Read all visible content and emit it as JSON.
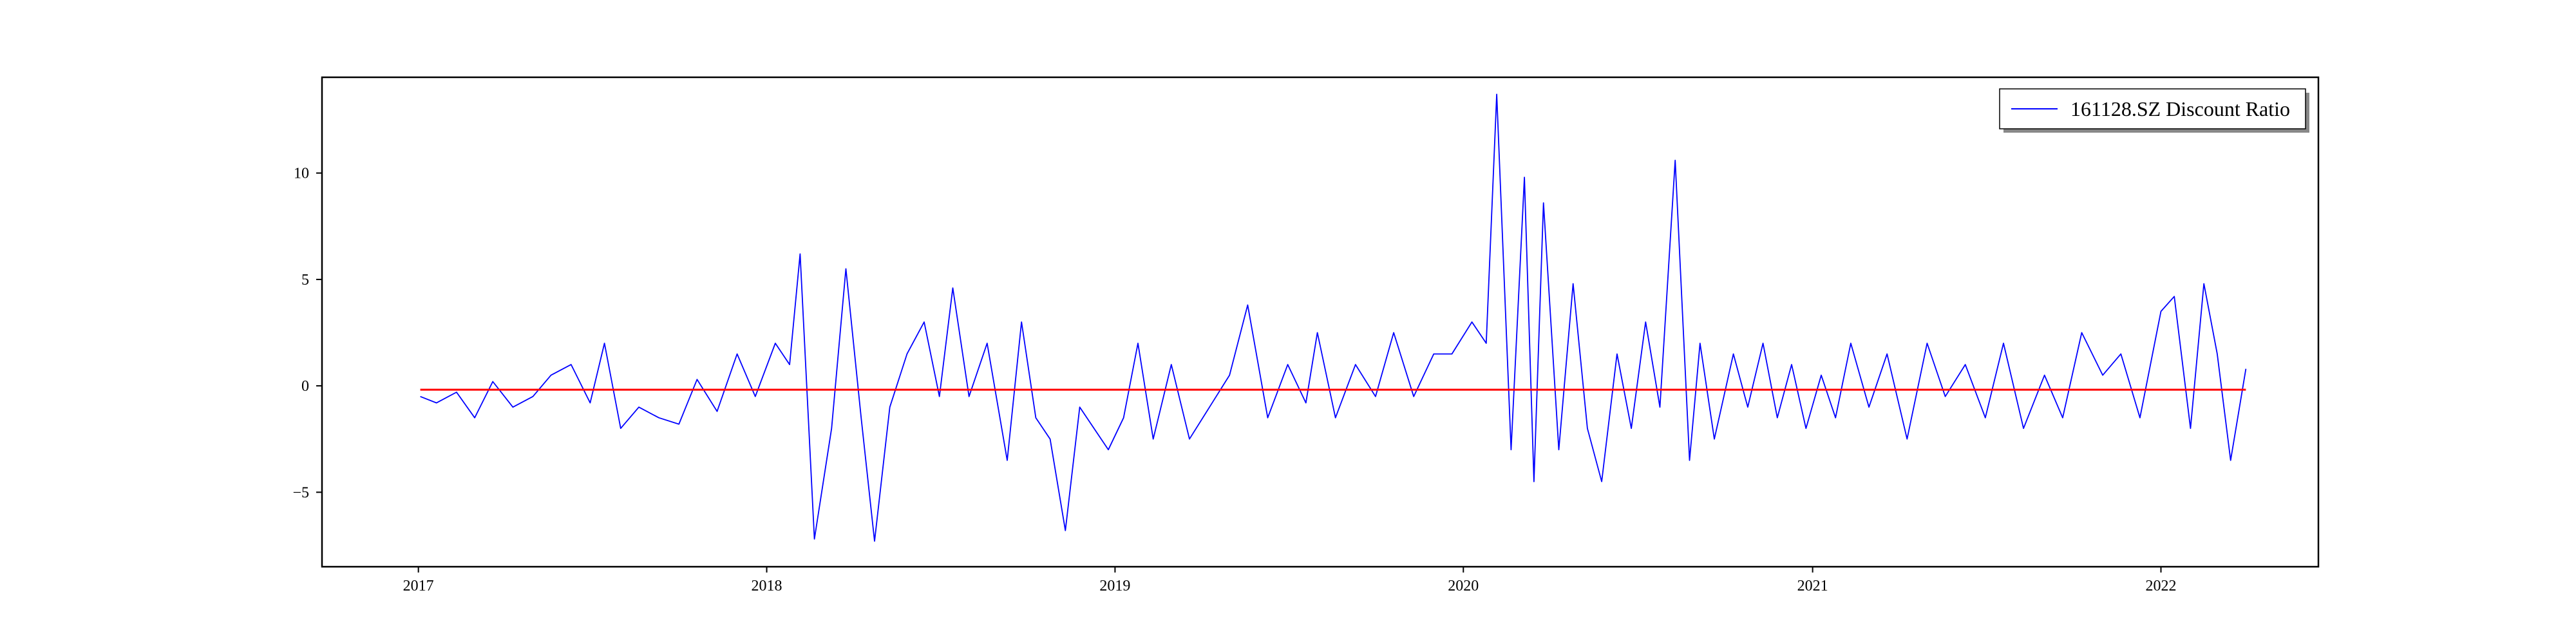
{
  "chart_data": {
    "type": "line",
    "title": "",
    "xlabel": "",
    "ylabel": "",
    "xlim": [
      "2016-09-22",
      "2022-06-15"
    ],
    "ylim": [
      -8.5,
      14.5
    ],
    "grid": false,
    "legend_position": "top-right",
    "x_ticks": [
      "2017",
      "2018",
      "2019",
      "2020",
      "2021",
      "2022"
    ],
    "y_ticks": [
      "−5",
      "0",
      "5",
      "10"
    ],
    "series": [
      {
        "name": "161128.SZ Discount Ratio",
        "color": "#0000ff",
        "dates": [
          "2017-01-03",
          "2017-01-20",
          "2017-02-10",
          "2017-03-01",
          "2017-03-20",
          "2017-04-10",
          "2017-05-01",
          "2017-05-20",
          "2017-06-10",
          "2017-06-30",
          "2017-07-15",
          "2017-08-01",
          "2017-08-20",
          "2017-09-10",
          "2017-10-01",
          "2017-10-20",
          "2017-11-10",
          "2017-12-01",
          "2017-12-20",
          "2018-01-10",
          "2018-01-25",
          "2018-02-05",
          "2018-02-20",
          "2018-03-10",
          "2018-03-25",
          "2018-04-10",
          "2018-04-24",
          "2018-05-10",
          "2018-05-28",
          "2018-06-15",
          "2018-07-01",
          "2018-07-15",
          "2018-08-01",
          "2018-08-20",
          "2018-09-10",
          "2018-09-25",
          "2018-10-10",
          "2018-10-25",
          "2018-11-10",
          "2018-11-25",
          "2018-12-10",
          "2018-12-25",
          "2019-01-10",
          "2019-01-25",
          "2019-02-10",
          "2019-03-01",
          "2019-03-20",
          "2019-04-10",
          "2019-05-01",
          "2019-05-20",
          "2019-06-10",
          "2019-07-01",
          "2019-07-20",
          "2019-08-01",
          "2019-08-20",
          "2019-09-10",
          "2019-10-01",
          "2019-10-20",
          "2019-11-10",
          "2019-12-01",
          "2019-12-20",
          "2020-01-10",
          "2020-01-25",
          "2020-02-05",
          "2020-02-20",
          "2020-03-05",
          "2020-03-15",
          "2020-03-25",
          "2020-04-10",
          "2020-04-25",
          "2020-05-10",
          "2020-05-25",
          "2020-06-10",
          "2020-06-25",
          "2020-07-10",
          "2020-07-25",
          "2020-08-10",
          "2020-08-25",
          "2020-09-05",
          "2020-09-20",
          "2020-10-10",
          "2020-10-25",
          "2020-11-10",
          "2020-11-25",
          "2020-12-10",
          "2020-12-25",
          "2021-01-10",
          "2021-01-25",
          "2021-02-10",
          "2021-03-01",
          "2021-03-20",
          "2021-04-10",
          "2021-05-01",
          "2021-05-20",
          "2021-06-10",
          "2021-07-01",
          "2021-07-20",
          "2021-08-10",
          "2021-09-01",
          "2021-09-20",
          "2021-10-10",
          "2021-11-01",
          "2021-11-20",
          "2021-12-10",
          "2022-01-01",
          "2022-01-15",
          "2022-02-01",
          "2022-02-15",
          "2022-03-01",
          "2022-03-15",
          "2022-03-31"
        ],
        "values": [
          -0.5,
          -0.8,
          -0.3,
          -1.5,
          0.2,
          -1.0,
          -0.5,
          0.5,
          1.0,
          -0.8,
          2.0,
          -2.0,
          -1.0,
          -1.5,
          -1.8,
          0.3,
          -1.2,
          1.5,
          -0.5,
          2.0,
          1.0,
          6.2,
          -7.2,
          -2.0,
          5.5,
          -1.5,
          -7.3,
          -1.0,
          1.5,
          3.0,
          -0.5,
          4.6,
          -0.5,
          2.0,
          -3.5,
          3.0,
          -1.5,
          -2.5,
          -6.8,
          -1.0,
          -2.0,
          -3.0,
          -1.5,
          2.0,
          -2.5,
          1.0,
          -2.5,
          -1.0,
          0.5,
          3.8,
          -1.5,
          1.0,
          -0.8,
          2.5,
          -1.5,
          1.0,
          -0.5,
          2.5,
          -0.5,
          1.5,
          1.5,
          3.0,
          2.0,
          13.7,
          -3.0,
          9.8,
          -4.5,
          8.6,
          -3.0,
          4.8,
          -2.0,
          -4.5,
          1.5,
          -2.0,
          3.0,
          -1.0,
          10.6,
          -3.5,
          2.0,
          -2.5,
          1.5,
          -1.0,
          2.0,
          -1.5,
          1.0,
          -2.0,
          0.5,
          -1.5,
          2.0,
          -1.0,
          1.5,
          -2.5,
          2.0,
          -0.5,
          1.0,
          -1.5,
          2.0,
          -2.0,
          0.5,
          -1.5,
          2.5,
          0.5,
          1.5,
          -1.5,
          3.5,
          4.2,
          -2.0,
          4.8,
          1.5,
          -3.5,
          0.8
        ]
      },
      {
        "name": "",
        "color": "#ff0000",
        "dates": [
          "2017-01-03",
          "2022-03-31"
        ],
        "values": [
          -0.18,
          -0.18
        ]
      }
    ]
  }
}
